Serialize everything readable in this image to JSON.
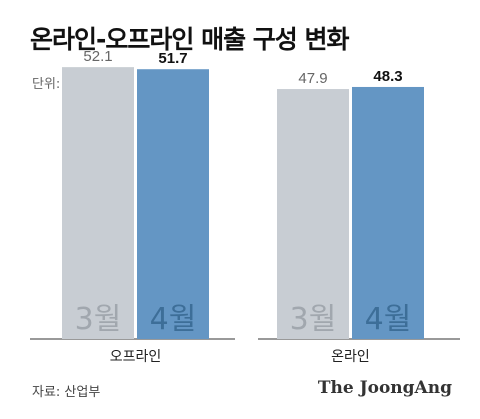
{
  "header": {
    "title": "온라인-오프라인 매출 구성 변화",
    "unit_label": "단위: %"
  },
  "footer": {
    "source": "자료: 산업부",
    "brand": "The JoongAng"
  },
  "colors": {
    "march": "#c8cdd3",
    "april": "#6496c4",
    "march_inbar": "#a1a7ae",
    "april_inbar": "#3d6e98"
  },
  "chart_data": {
    "type": "bar",
    "categories": [
      "오프라인",
      "온라인"
    ],
    "series": [
      {
        "name": "3월",
        "values": [
          52.1,
          47.9
        ]
      },
      {
        "name": "4월",
        "values": [
          51.7,
          48.3
        ]
      }
    ],
    "value_labels": [
      [
        "52.1",
        "47.9"
      ],
      [
        "51.7",
        "48.3"
      ]
    ],
    "ylim": [
      0,
      55
    ],
    "legend": "in-bar"
  }
}
